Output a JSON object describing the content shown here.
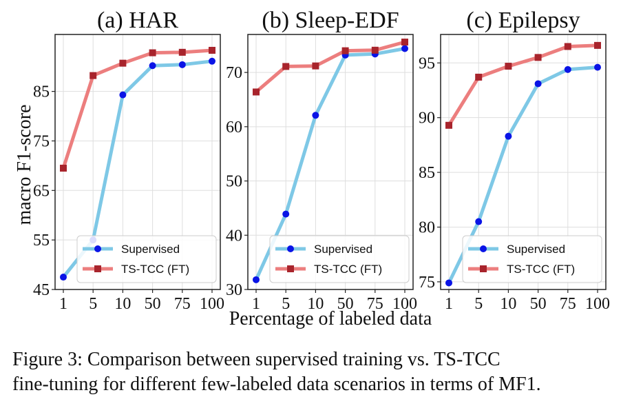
{
  "figure": {
    "xlabel": "Percentage of labeled data",
    "ylabel": "macro F1-score",
    "caption_line1": "Figure 3: Comparison between supervised training vs.  TS-TCC",
    "caption_line2": "fine-tuning for different few-labeled data scenarios in terms of MF1.",
    "colors": {
      "supervised": "#7ec8e6",
      "supervised_marker": "#0a14e6",
      "tstcc": "#ec7e7e",
      "tstcc_marker": "#a8242c",
      "grid": "#dedede",
      "axis": "#222222"
    }
  },
  "chart_data": [
    {
      "type": "line",
      "title": "(a) HAR",
      "categories": [
        "1",
        "5",
        "10",
        "50",
        "75",
        "100"
      ],
      "ylim": [
        45,
        96.5
      ],
      "yticks": [
        45,
        55,
        65,
        75,
        85
      ],
      "grid": true,
      "legend": "bottom-right",
      "series": [
        {
          "name": "Supervised",
          "values": [
            47.5,
            55.0,
            84.3,
            90.2,
            90.4,
            91.1
          ]
        },
        {
          "name": "TS-TCC (FT)",
          "values": [
            69.5,
            88.2,
            90.7,
            92.8,
            92.9,
            93.3
          ]
        }
      ]
    },
    {
      "type": "line",
      "title": "(b) Sleep-EDF",
      "categories": [
        "1",
        "5",
        "10",
        "50",
        "75",
        "100"
      ],
      "ylim": [
        30,
        77
      ],
      "yticks": [
        30,
        40,
        50,
        60,
        70
      ],
      "grid": true,
      "legend": "bottom-right",
      "series": [
        {
          "name": "Supervised",
          "values": [
            31.8,
            43.9,
            62.1,
            73.2,
            73.4,
            74.4
          ]
        },
        {
          "name": "TS-TCC (FT)",
          "values": [
            66.4,
            71.1,
            71.2,
            74.0,
            74.1,
            75.6
          ]
        }
      ]
    },
    {
      "type": "line",
      "title": "(c) Epilepsy",
      "categories": [
        "1",
        "5",
        "10",
        "50",
        "75",
        "100"
      ],
      "ylim": [
        74.3,
        97.6
      ],
      "yticks": [
        75,
        80,
        85,
        90,
        95
      ],
      "grid": true,
      "legend": "bottom-right",
      "series": [
        {
          "name": "Supervised",
          "values": [
            74.9,
            80.5,
            88.3,
            93.1,
            94.4,
            94.6
          ]
        },
        {
          "name": "TS-TCC (FT)",
          "values": [
            89.3,
            93.7,
            94.7,
            95.5,
            96.5,
            96.6
          ]
        }
      ]
    }
  ]
}
